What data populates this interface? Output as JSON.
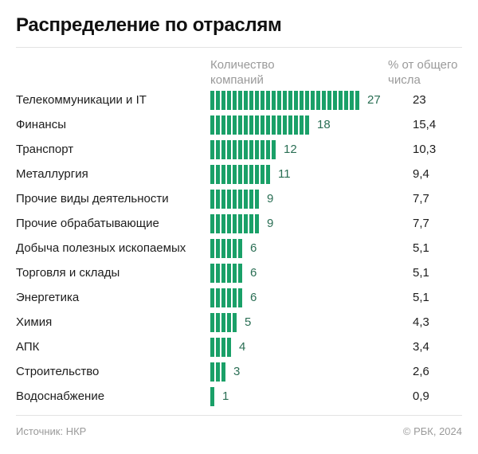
{
  "header": {
    "title": "Распределение по отраслям",
    "col_count": "Количество компаний",
    "col_count_l1": "Количество",
    "col_count_l2": "компаний",
    "col_pct_l1": "% от общего",
    "col_pct_l2": "числа"
  },
  "footer": {
    "source": "Источник: НКР",
    "copyright": "© РБК, 2024"
  },
  "colors": {
    "bar": "#1aa068",
    "count_text": "#2a6e54"
  },
  "chart_data": {
    "type": "bar",
    "orientation": "horizontal",
    "title": "Распределение по отраслям",
    "categories": [
      "Телекоммуникации и IT",
      "Финансы",
      "Транспорт",
      "Металлургия",
      "Прочие виды деятельности",
      "Прочие обрабатывающие",
      "Добыча полезных ископаемых",
      "Торговля и склады",
      "Энергетика",
      "Химия",
      "АПК",
      "Строительство",
      "Водоснабжение"
    ],
    "series": [
      {
        "name": "Количество компаний",
        "values": [
          27,
          18,
          12,
          11,
          9,
          9,
          6,
          6,
          6,
          5,
          4,
          3,
          1
        ]
      }
    ],
    "share_percent": [
      "23",
      "15,4",
      "10,3",
      "9,4",
      "7,7",
      "7,7",
      "5,1",
      "5,1",
      "5,1",
      "4,3",
      "3,4",
      "2,6",
      "0,9"
    ]
  }
}
